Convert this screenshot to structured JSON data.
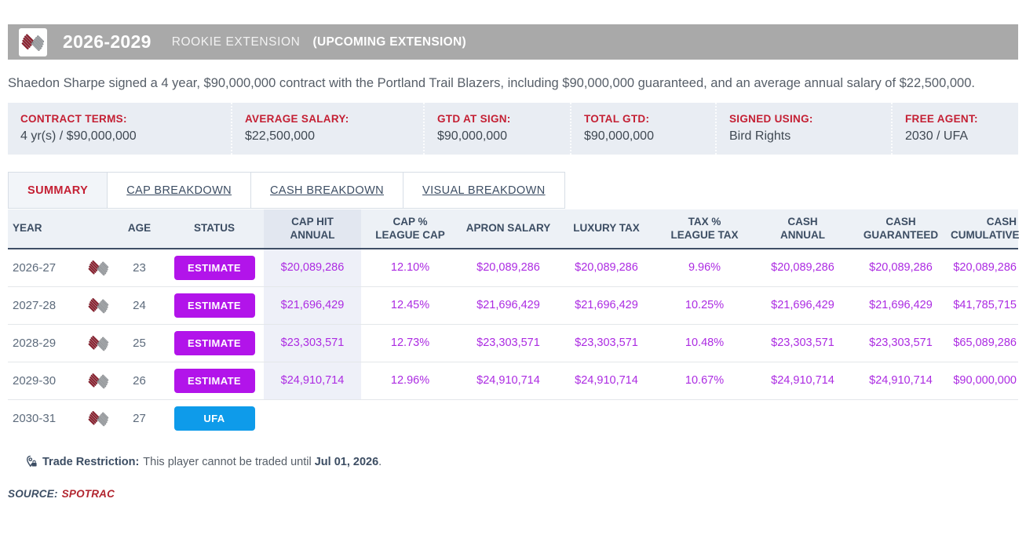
{
  "title_bar": {
    "years": "2026-2029",
    "contract_type": "ROOKIE EXTENSION",
    "note": "(UPCOMING EXTENSION)"
  },
  "description": "Shaedon Sharpe signed a 4 year, $90,000,000 contract with the Portland Trail Blazers, including $90,000,000 guaranteed, and an average annual salary of $22,500,000.",
  "terms": [
    {
      "label": "CONTRACT TERMS:",
      "value": "4 yr(s) / $90,000,000"
    },
    {
      "label": "AVERAGE SALARY:",
      "value": "$22,500,000"
    },
    {
      "label": "GTD AT SIGN:",
      "value": "$90,000,000"
    },
    {
      "label": "TOTAL GTD:",
      "value": "$90,000,000"
    },
    {
      "label": "SIGNED USING:",
      "value": "Bird Rights"
    },
    {
      "label": "FREE AGENT:",
      "value": "2030 / UFA"
    }
  ],
  "tabs": [
    {
      "label": "SUMMARY",
      "active": true
    },
    {
      "label": "CAP BREAKDOWN",
      "active": false
    },
    {
      "label": "CASH BREAKDOWN",
      "active": false
    },
    {
      "label": "VISUAL BREAKDOWN",
      "active": false
    }
  ],
  "table": {
    "columns": [
      {
        "key": "year",
        "label": "YEAR"
      },
      {
        "key": "logo",
        "label": ""
      },
      {
        "key": "age",
        "label": "AGE"
      },
      {
        "key": "status",
        "label": "STATUS"
      },
      {
        "key": "cap_hit",
        "label": "CAP HIT\nANNUAL",
        "highlight": true
      },
      {
        "key": "cap_pct",
        "label": "CAP %\nLEAGUE CAP"
      },
      {
        "key": "apron",
        "label": "APRON SALARY"
      },
      {
        "key": "luxury",
        "label": "LUXURY TAX"
      },
      {
        "key": "tax_pct",
        "label": "TAX %\nLEAGUE TAX"
      },
      {
        "key": "cash_annual",
        "label": "CASH\nANNUAL"
      },
      {
        "key": "cash_gtd",
        "label": "CASH\nGUARANTEED"
      },
      {
        "key": "cash_cum",
        "label": "CASH\nCUMULATIVE"
      }
    ],
    "rows": [
      {
        "year": "2026-27",
        "age": "23",
        "status": "ESTIMATE",
        "status_type": "estimate",
        "cap_hit": "$20,089,286",
        "cap_pct": "12.10%",
        "apron": "$20,089,286",
        "luxury": "$20,089,286",
        "tax_pct": "9.96%",
        "cash_annual": "$20,089,286",
        "cash_gtd": "$20,089,286",
        "cash_cum": "$20,089,286"
      },
      {
        "year": "2027-28",
        "age": "24",
        "status": "ESTIMATE",
        "status_type": "estimate",
        "cap_hit": "$21,696,429",
        "cap_pct": "12.45%",
        "apron": "$21,696,429",
        "luxury": "$21,696,429",
        "tax_pct": "10.25%",
        "cash_annual": "$21,696,429",
        "cash_gtd": "$21,696,429",
        "cash_cum": "$41,785,715"
      },
      {
        "year": "2028-29",
        "age": "25",
        "status": "ESTIMATE",
        "status_type": "estimate",
        "cap_hit": "$23,303,571",
        "cap_pct": "12.73%",
        "apron": "$23,303,571",
        "luxury": "$23,303,571",
        "tax_pct": "10.48%",
        "cash_annual": "$23,303,571",
        "cash_gtd": "$23,303,571",
        "cash_cum": "$65,089,286"
      },
      {
        "year": "2029-30",
        "age": "26",
        "status": "ESTIMATE",
        "status_type": "estimate",
        "cap_hit": "$24,910,714",
        "cap_pct": "12.96%",
        "apron": "$24,910,714",
        "luxury": "$24,910,714",
        "tax_pct": "10.67%",
        "cash_annual": "$24,910,714",
        "cash_gtd": "$24,910,714",
        "cash_cum": "$90,000,000"
      },
      {
        "year": "2030-31",
        "age": "27",
        "status": "UFA",
        "status_type": "ufa",
        "cap_hit": "",
        "cap_pct": "",
        "apron": "",
        "luxury": "",
        "tax_pct": "",
        "cash_annual": "",
        "cash_gtd": "",
        "cash_cum": ""
      }
    ]
  },
  "trade_restriction": {
    "label": "Trade Restriction:",
    "text": "This player cannot be traded until",
    "date": "Jul 01, 2026",
    "suffix": "."
  },
  "source": {
    "label": "SOURCE:",
    "link": "SPOTRAC"
  },
  "colors": {
    "label_red": "#c41f33",
    "money": "#ac2be2",
    "estimate_badge": "#b214ea",
    "ufa_badge": "#0e9bea",
    "header_gray": "#a9a9a9",
    "navy": "#3c4d63"
  }
}
